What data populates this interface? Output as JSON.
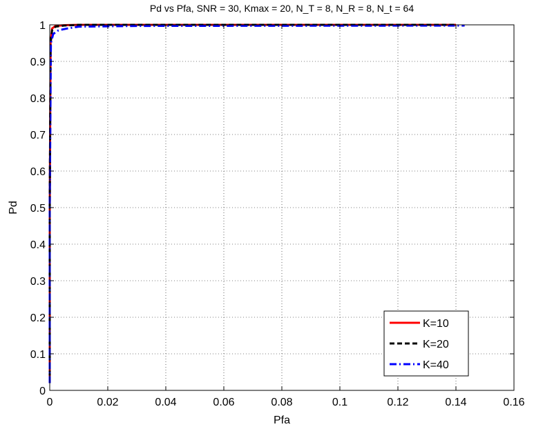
{
  "chart_data": {
    "type": "line",
    "title": "Pd vs Pfa,  SNR = 30,  Kmax = 20,  N_T = 8,  N_R = 8,  N_t = 64",
    "xlabel": "Pfa",
    "ylabel": "Pd",
    "xlim": [
      0,
      0.16
    ],
    "ylim": [
      0,
      1
    ],
    "xticks": [
      "0",
      "0.02",
      "0.04",
      "0.06",
      "0.08",
      "0.1",
      "0.12",
      "0.14",
      "0.16"
    ],
    "yticks": [
      "0",
      "0.1",
      "0.2",
      "0.3",
      "0.4",
      "0.5",
      "0.6",
      "0.7",
      "0.8",
      "0.9",
      "1"
    ],
    "grid": true,
    "legend_position": "bottom-right",
    "series": [
      {
        "name": "K=10",
        "color": "#ff0000",
        "style": "solid",
        "x": [
          0,
          0,
          0.0003,
          0.0008,
          0.002,
          0.005,
          0.01,
          0.14
        ],
        "y": [
          0.02,
          0.5,
          0.95,
          0.99,
          0.997,
          0.999,
          1.0,
          1.0
        ]
      },
      {
        "name": "K=20",
        "color": "#000000",
        "style": "dashed",
        "x": [
          0,
          0,
          0.0003,
          0.0008,
          0.002,
          0.005,
          0.01,
          0.14
        ],
        "y": [
          0.02,
          0.5,
          0.95,
          0.985,
          0.995,
          0.998,
          1.0,
          1.0
        ]
      },
      {
        "name": "K=40",
        "color": "#0000ff",
        "style": "dashdot",
        "x": [
          0,
          0,
          0.0004,
          0.0012,
          0.003,
          0.006,
          0.01,
          0.03,
          0.143
        ],
        "y": [
          0.02,
          0.5,
          0.95,
          0.975,
          0.985,
          0.99,
          0.995,
          0.997,
          0.998
        ]
      }
    ]
  }
}
